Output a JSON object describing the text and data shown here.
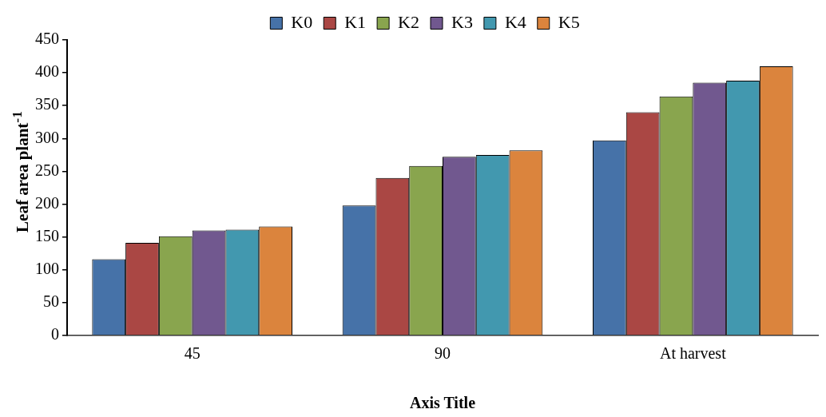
{
  "chart_data": {
    "type": "bar",
    "xlabel": "Axis Title",
    "ylabel": "Leaf area plant$^{-1}$",
    "categories": [
      "45",
      "90",
      "At harvest"
    ],
    "series": [
      {
        "name": "K0",
        "color": "#4672a8",
        "values": [
          116,
          198,
          297
        ]
      },
      {
        "name": "K1",
        "color": "#aa4744",
        "values": [
          141,
          240,
          340
        ]
      },
      {
        "name": "K2",
        "color": "#89a54e",
        "values": [
          151,
          258,
          364
        ]
      },
      {
        "name": "K3",
        "color": "#71588f",
        "values": [
          160,
          272,
          385
        ]
      },
      {
        "name": "K4",
        "color": "#4298af",
        "values": [
          161,
          275,
          388
        ]
      },
      {
        "name": "K5",
        "color": "#db843d",
        "values": [
          166,
          282,
          410
        ]
      }
    ],
    "ylim": [
      0,
      450
    ],
    "yticks": [
      0,
      50,
      100,
      150,
      200,
      250,
      300,
      350,
      400,
      450
    ],
    "grid": false,
    "legend": "top"
  }
}
